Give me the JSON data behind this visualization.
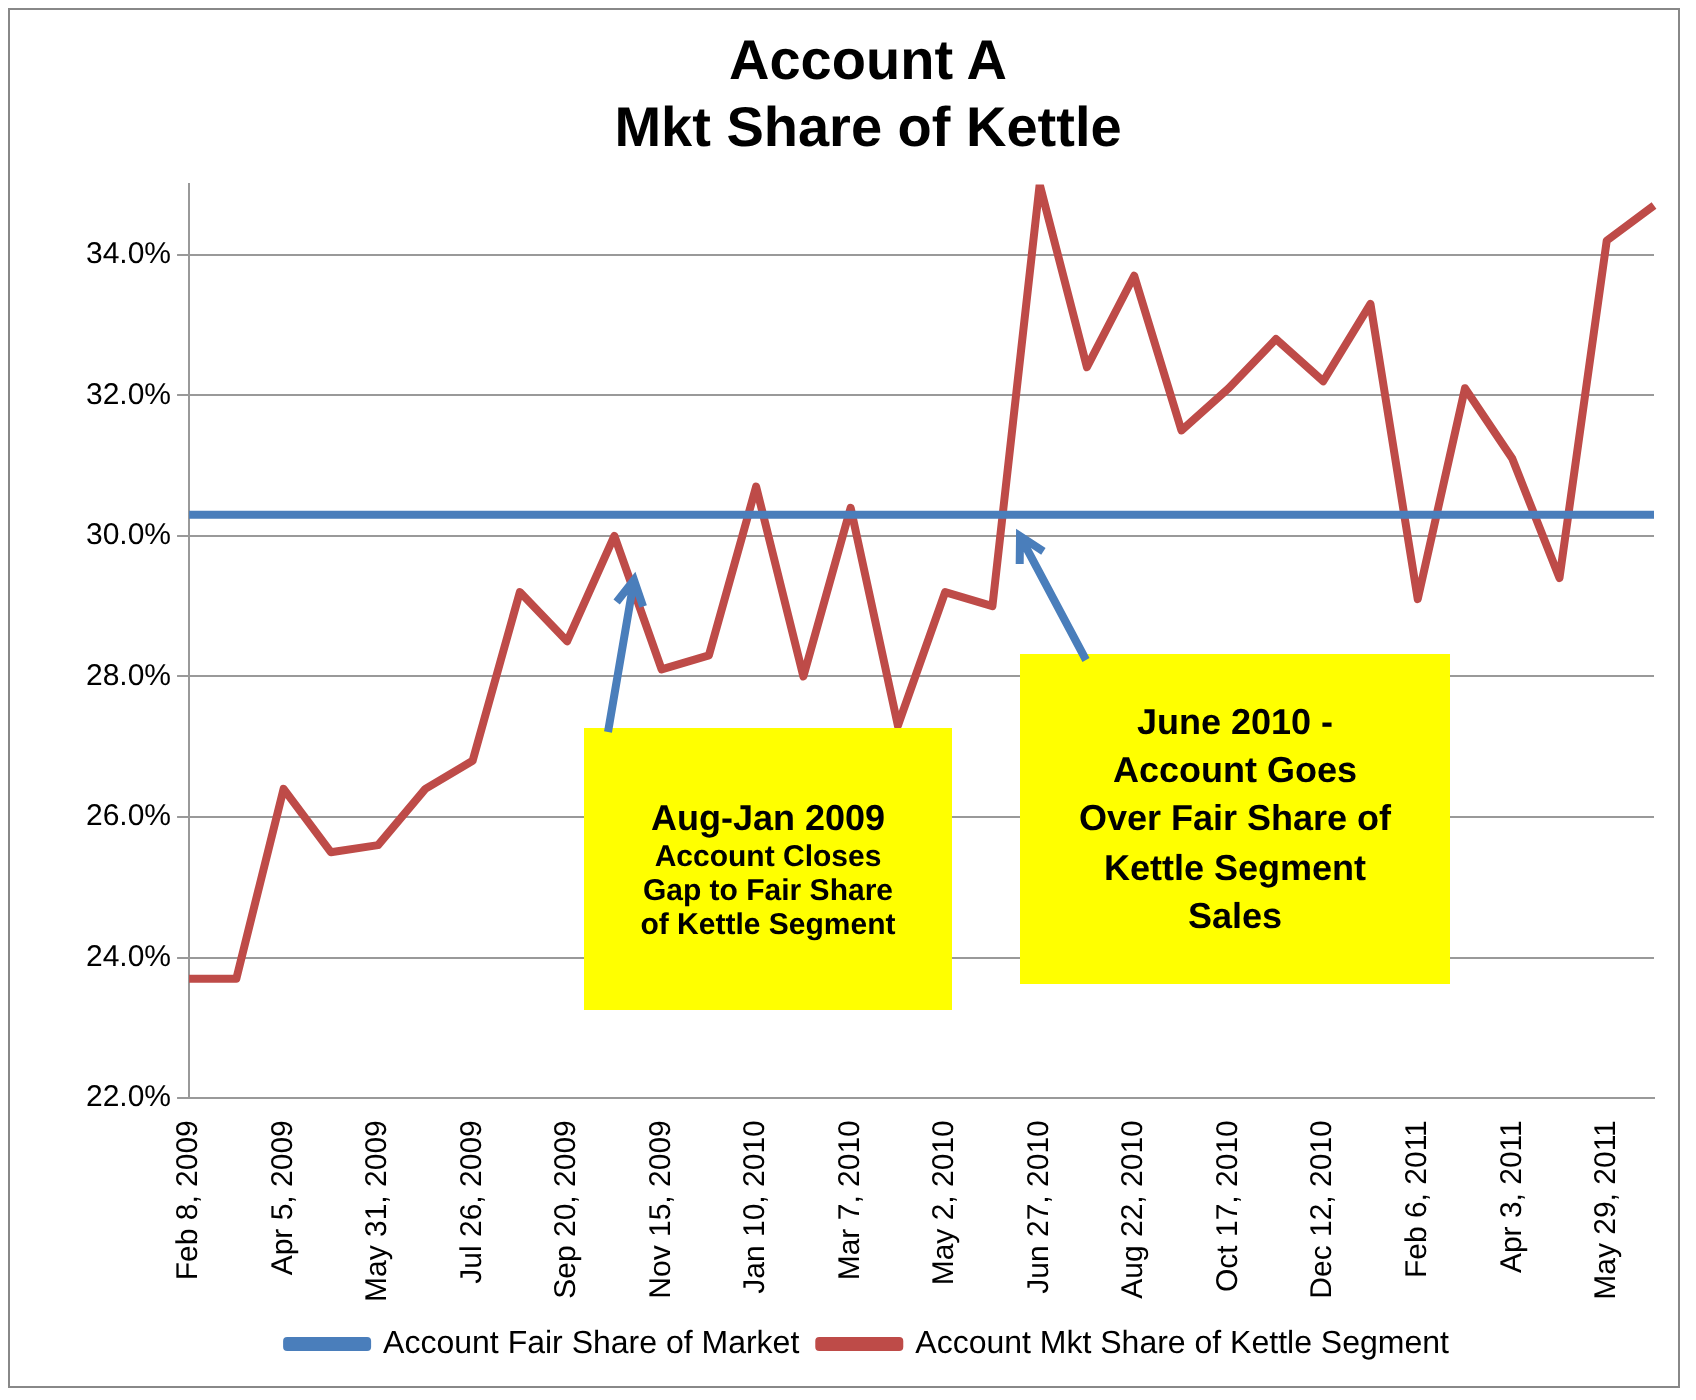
{
  "chart_data": {
    "type": "line",
    "title": "Account A\nMkt Share of Kettle",
    "categories": [
      "Feb 8, 2009",
      null,
      "Apr 5, 2009",
      null,
      "May 31, 2009",
      null,
      "Jul 26, 2009",
      null,
      "Sep 20, 2009",
      null,
      "Nov 15, 2009",
      null,
      "Jan 10, 2010",
      null,
      "Mar 7, 2010",
      null,
      "May 2, 2010",
      null,
      "Jun 27, 2010",
      null,
      "Aug 22, 2010",
      null,
      "Oct 17, 2010",
      null,
      "Dec 12, 2010",
      null,
      "Feb 6, 2011",
      null,
      "Apr 3, 2011",
      null,
      "May 29, 2011",
      null
    ],
    "series": [
      {
        "name": "Account Fair Share of Market",
        "color": "#4a7ebb",
        "values": [
          30.3,
          30.3,
          30.3,
          30.3,
          30.3,
          30.3,
          30.3,
          30.3,
          30.3,
          30.3,
          30.3,
          30.3,
          30.3,
          30.3,
          30.3,
          30.3,
          30.3,
          30.3,
          30.3,
          30.3,
          30.3,
          30.3,
          30.3,
          30.3,
          30.3,
          30.3,
          30.3,
          30.3,
          30.3,
          30.3,
          30.3,
          30.3
        ]
      },
      {
        "name": "Account Mkt Share of Kettle Segment",
        "color": "#be4b48",
        "values": [
          23.7,
          23.7,
          26.4,
          25.5,
          25.6,
          26.4,
          26.8,
          29.2,
          28.5,
          30.0,
          28.1,
          28.3,
          30.7,
          28.0,
          30.4,
          27.3,
          29.2,
          29.0,
          35.0,
          32.4,
          33.7,
          31.5,
          32.1,
          32.8,
          32.2,
          33.3,
          29.1,
          32.1,
          31.1,
          29.4,
          34.2,
          34.7
        ]
      }
    ],
    "ylim": [
      22,
      35
    ],
    "yticks": [
      {
        "value": 22,
        "label": "22.0%"
      },
      {
        "value": 24,
        "label": "24.0%"
      },
      {
        "value": 26,
        "label": "26.0%"
      },
      {
        "value": 28,
        "label": "28.0%"
      },
      {
        "value": 30,
        "label": "30.0%"
      },
      {
        "value": 32,
        "label": "32.0%"
      },
      {
        "value": 34,
        "label": "34.0%"
      }
    ],
    "grid": "y",
    "legend": "bottom",
    "marker": "none",
    "line_style": "solid",
    "annotations": [
      "Aug-Jan 2009\nAccount Closes Gap to Fair Share of Kettle Segment",
      "June 2010 - Account Goes Over Fair Share of Kettle Segment Sales"
    ]
  }
}
